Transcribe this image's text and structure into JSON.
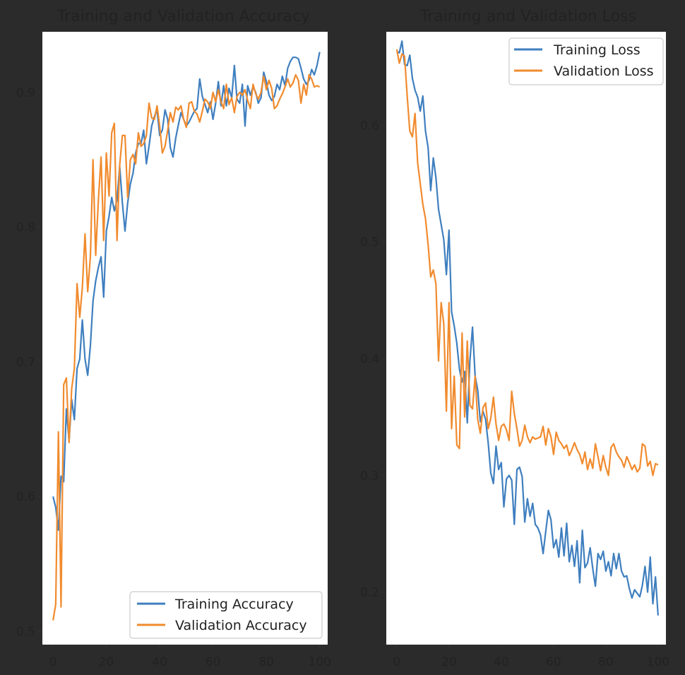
{
  "colors": {
    "background": "#2b2b2b",
    "training": "#3f7fbf",
    "validation": "#f18b2e"
  },
  "chart_data": [
    {
      "type": "line",
      "title": "Training and Validation Accuracy",
      "xlabel": "",
      "ylabel": "",
      "xlim": [
        -4,
        103
      ],
      "ylim": [
        0.49,
        0.945
      ],
      "xticks": [
        0,
        20,
        40,
        60,
        80,
        100
      ],
      "yticks": [
        0.5,
        0.6,
        0.7,
        0.8,
        0.9
      ],
      "grid": false,
      "legend_position": "lower right",
      "series": [
        {
          "name": "Training Accuracy",
          "color": "#3f7fbf",
          "values": [
            0.6,
            0.592,
            0.575,
            0.615,
            0.611,
            0.665,
            0.641,
            0.672,
            0.657,
            0.695,
            0.702,
            0.731,
            0.702,
            0.69,
            0.712,
            0.745,
            0.76,
            0.77,
            0.778,
            0.748,
            0.797,
            0.808,
            0.822,
            0.812,
            0.82,
            0.845,
            0.818,
            0.797,
            0.818,
            0.832,
            0.84,
            0.855,
            0.862,
            0.862,
            0.872,
            0.847,
            0.86,
            0.875,
            0.882,
            0.887,
            0.868,
            0.872,
            0.887,
            0.88,
            0.859,
            0.852,
            0.866,
            0.876,
            0.885,
            0.88,
            0.875,
            0.878,
            0.882,
            0.886,
            0.888,
            0.91,
            0.897,
            0.891,
            0.885,
            0.893,
            0.88,
            0.892,
            0.908,
            0.89,
            0.905,
            0.89,
            0.903,
            0.896,
            0.92,
            0.895,
            0.892,
            0.906,
            0.875,
            0.905,
            0.898,
            0.904,
            0.9,
            0.892,
            0.896,
            0.915,
            0.908,
            0.898,
            0.894,
            0.897,
            0.906,
            0.902,
            0.912,
            0.905,
            0.918,
            0.923,
            0.926,
            0.926,
            0.925,
            0.918,
            0.91,
            0.906,
            0.909,
            0.917,
            0.913,
            0.92,
            0.93
          ]
        },
        {
          "name": "Validation Accuracy",
          "color": "#f18b2e",
          "values": [
            0.508,
            0.52,
            0.648,
            0.518,
            0.683,
            0.688,
            0.64,
            0.68,
            0.695,
            0.758,
            0.733,
            0.755,
            0.795,
            0.752,
            0.778,
            0.85,
            0.779,
            0.82,
            0.852,
            0.79,
            0.855,
            0.823,
            0.87,
            0.877,
            0.79,
            0.846,
            0.868,
            0.868,
            0.822,
            0.85,
            0.854,
            0.847,
            0.87,
            0.86,
            0.862,
            0.868,
            0.892,
            0.881,
            0.88,
            0.89,
            0.875,
            0.855,
            0.86,
            0.872,
            0.885,
            0.878,
            0.889,
            0.887,
            0.89,
            0.88,
            0.874,
            0.892,
            0.893,
            0.886,
            0.884,
            0.878,
            0.886,
            0.895,
            0.893,
            0.888,
            0.9,
            0.893,
            0.902,
            0.893,
            0.888,
            0.906,
            0.891,
            0.896,
            0.885,
            0.897,
            0.9,
            0.898,
            0.902,
            0.894,
            0.888,
            0.906,
            0.899,
            0.895,
            0.9,
            0.912,
            0.902,
            0.909,
            0.903,
            0.888,
            0.89,
            0.895,
            0.899,
            0.904,
            0.91,
            0.904,
            0.907,
            0.913,
            0.909,
            0.892,
            0.906,
            0.898,
            0.913,
            0.91,
            0.904,
            0.905,
            0.904
          ]
        }
      ]
    },
    {
      "type": "line",
      "title": "Training and Validation Loss",
      "xlabel": "",
      "ylabel": "",
      "xlim": [
        -4,
        103
      ],
      "ylim": [
        0.155,
        0.68
      ],
      "xticks": [
        0,
        20,
        40,
        60,
        80,
        100
      ],
      "yticks": [
        0.2,
        0.3,
        0.4,
        0.5,
        0.6
      ],
      "grid": false,
      "legend_position": "upper right",
      "series": [
        {
          "name": "Training Loss",
          "color": "#3f7fbf",
          "values": [
            0.663,
            0.662,
            0.672,
            0.652,
            0.651,
            0.66,
            0.64,
            0.63,
            0.624,
            0.612,
            0.625,
            0.595,
            0.581,
            0.544,
            0.572,
            0.555,
            0.528,
            0.515,
            0.502,
            0.472,
            0.51,
            0.44,
            0.428,
            0.413,
            0.391,
            0.38,
            0.389,
            0.345,
            0.398,
            0.427,
            0.385,
            0.373,
            0.346,
            0.355,
            0.348,
            0.328,
            0.302,
            0.293,
            0.325,
            0.305,
            0.311,
            0.273,
            0.297,
            0.3,
            0.296,
            0.258,
            0.305,
            0.307,
            0.299,
            0.26,
            0.28,
            0.265,
            0.276,
            0.258,
            0.255,
            0.249,
            0.233,
            0.252,
            0.27,
            0.262,
            0.238,
            0.245,
            0.23,
            0.255,
            0.231,
            0.259,
            0.226,
            0.24,
            0.222,
            0.244,
            0.208,
            0.253,
            0.221,
            0.225,
            0.238,
            0.22,
            0.205,
            0.233,
            0.228,
            0.235,
            0.218,
            0.226,
            0.214,
            0.233,
            0.22,
            0.233,
            0.218,
            0.213,
            0.214,
            0.203,
            0.195,
            0.202,
            0.199,
            0.196,
            0.206,
            0.222,
            0.2,
            0.23,
            0.19,
            0.213,
            0.18
          ]
        },
        {
          "name": "Validation Loss",
          "color": "#f18b2e",
          "values": [
            0.665,
            0.653,
            0.661,
            0.659,
            0.625,
            0.595,
            0.59,
            0.61,
            0.568,
            0.55,
            0.532,
            0.52,
            0.498,
            0.47,
            0.476,
            0.464,
            0.398,
            0.448,
            0.43,
            0.355,
            0.448,
            0.34,
            0.385,
            0.326,
            0.323,
            0.422,
            0.35,
            0.415,
            0.36,
            0.357,
            0.385,
            0.348,
            0.336,
            0.358,
            0.362,
            0.34,
            0.349,
            0.367,
            0.344,
            0.33,
            0.342,
            0.344,
            0.339,
            0.33,
            0.372,
            0.353,
            0.34,
            0.325,
            0.33,
            0.343,
            0.333,
            0.328,
            0.333,
            0.331,
            0.332,
            0.333,
            0.342,
            0.326,
            0.34,
            0.333,
            0.318,
            0.337,
            0.33,
            0.327,
            0.323,
            0.326,
            0.317,
            0.322,
            0.328,
            0.322,
            0.318,
            0.31,
            0.32,
            0.305,
            0.314,
            0.306,
            0.327,
            0.316,
            0.304,
            0.317,
            0.307,
            0.3,
            0.324,
            0.327,
            0.32,
            0.316,
            0.313,
            0.307,
            0.316,
            0.311,
            0.305,
            0.309,
            0.303,
            0.306,
            0.327,
            0.325,
            0.308,
            0.312,
            0.3,
            0.31,
            0.309
          ]
        }
      ]
    }
  ]
}
